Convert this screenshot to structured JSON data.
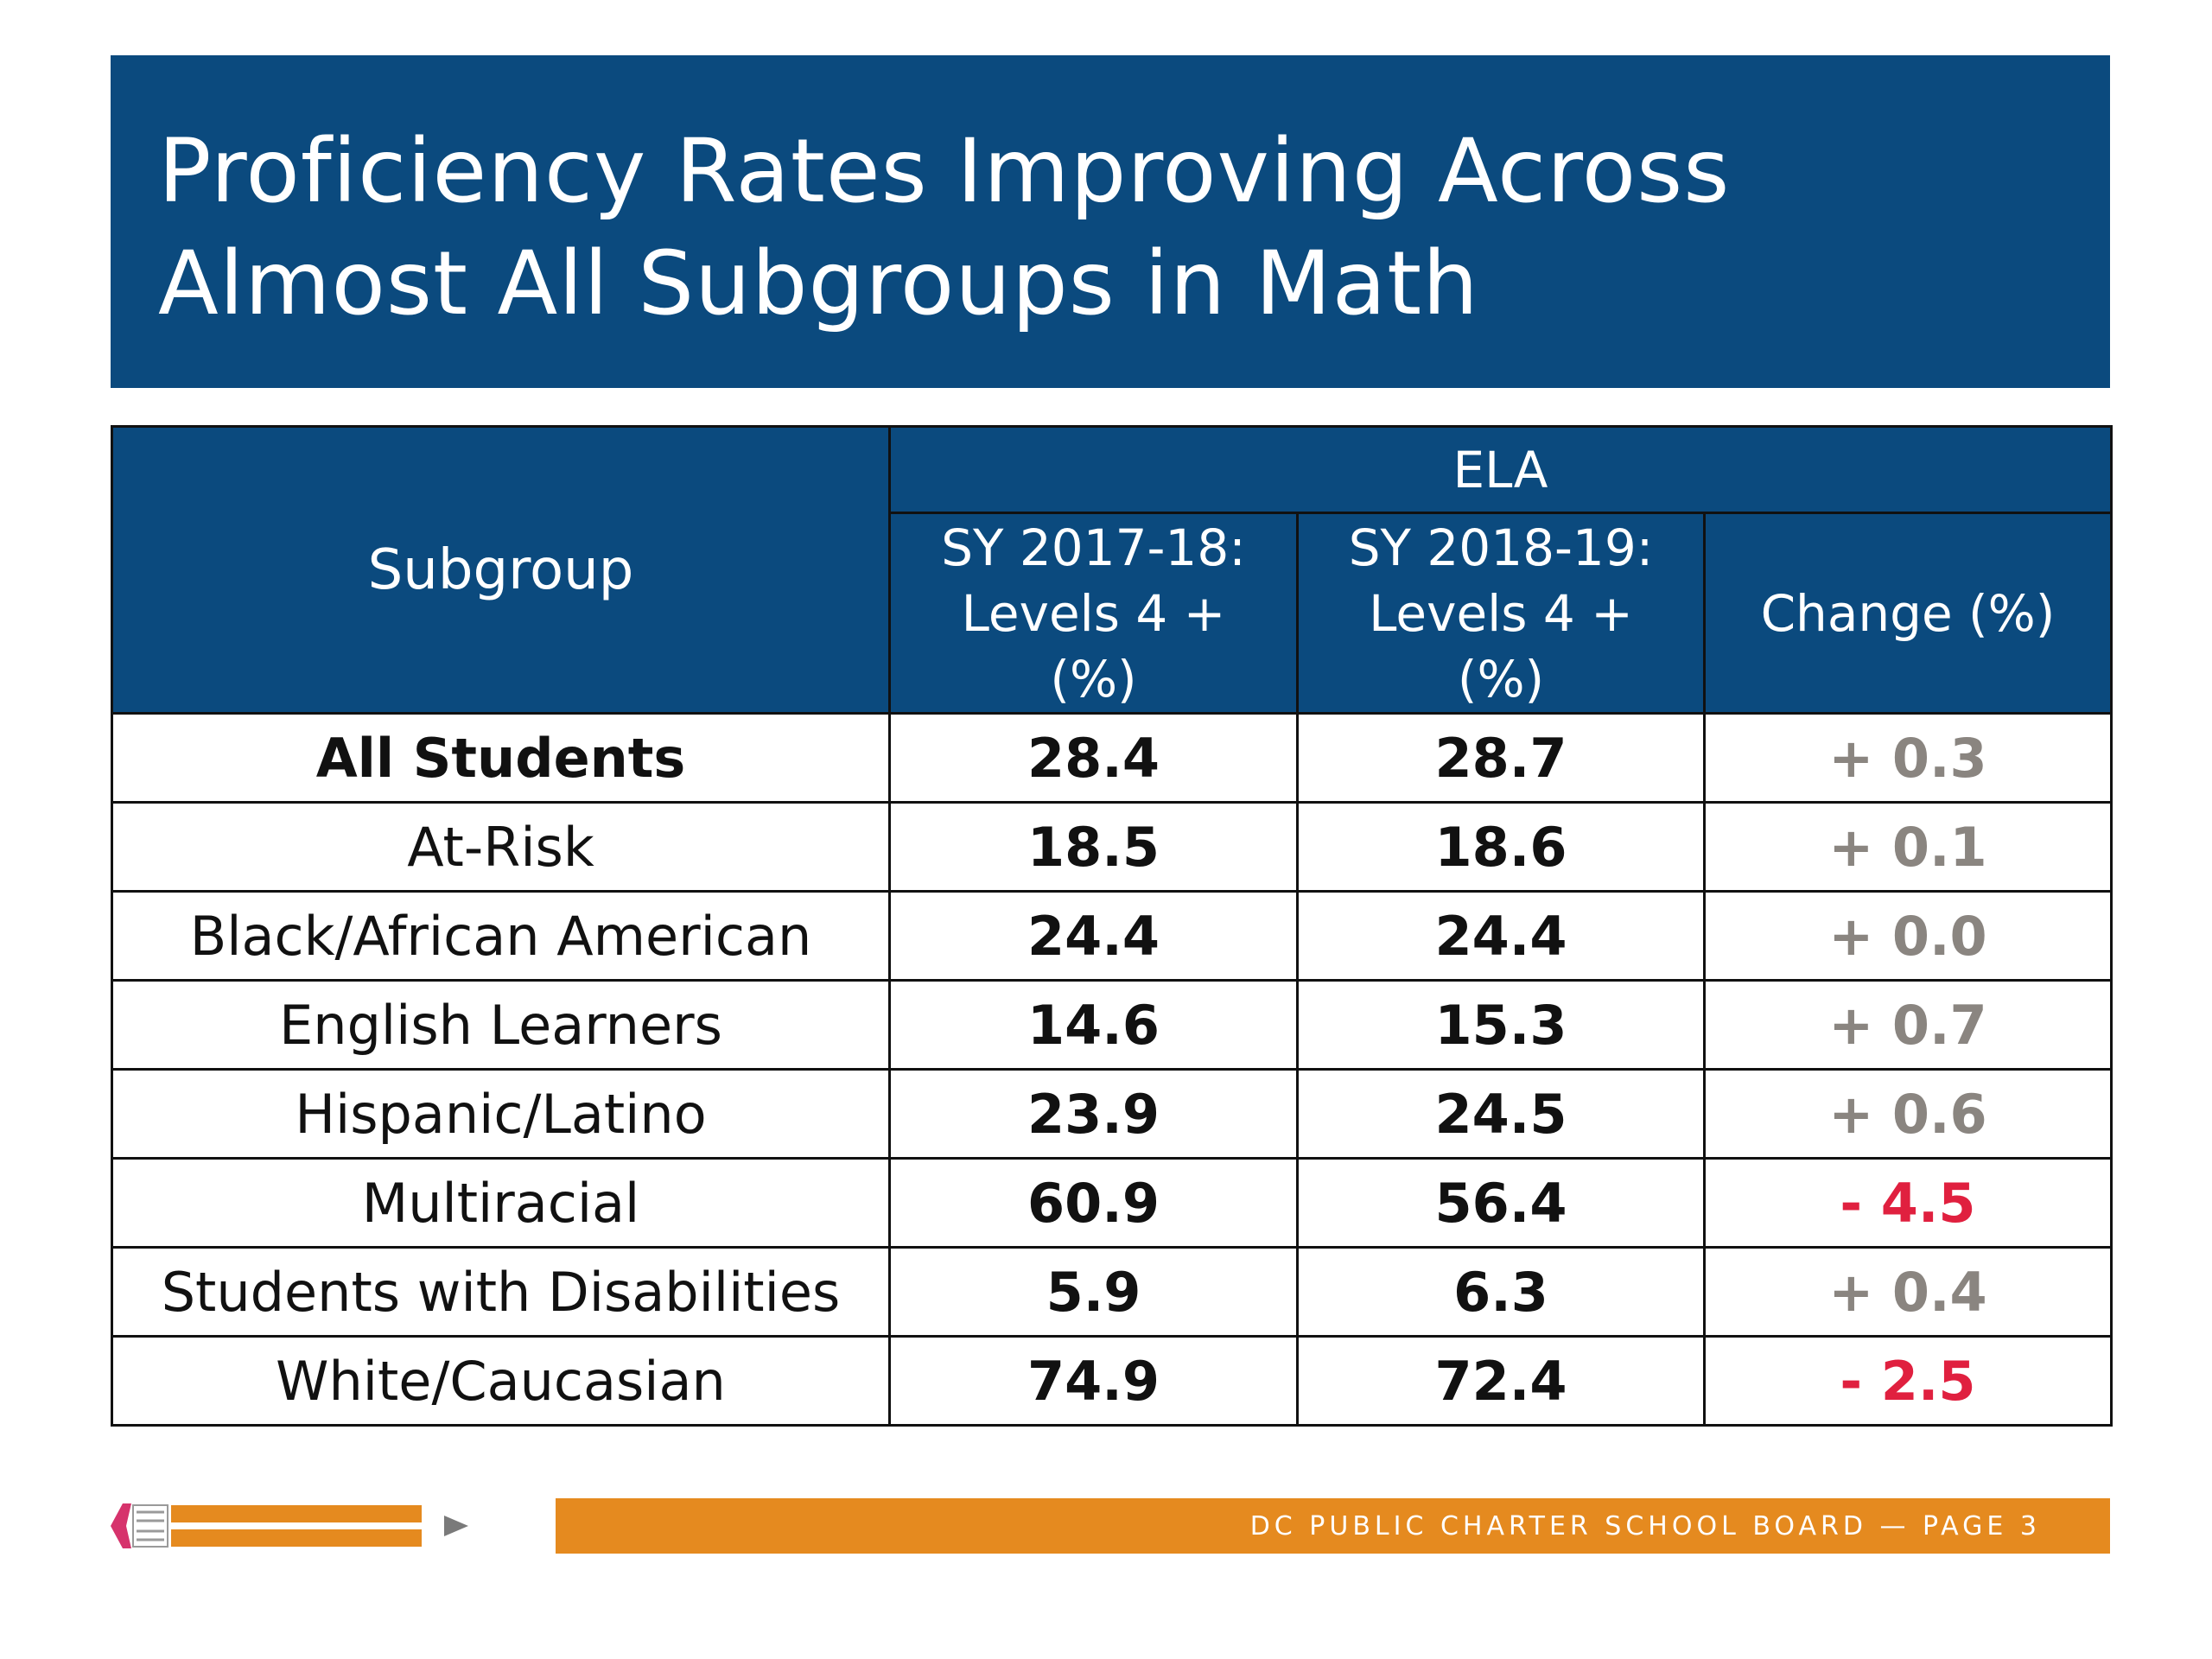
{
  "title": {
    "line1": "Proficiency Rates Improving Across",
    "line2": "Almost All Subgroups in Math"
  },
  "table": {
    "header_subgroup": "Subgroup",
    "header_group": "ELA",
    "columns": [
      {
        "l1": "SY 2017-18:",
        "l2": "Levels 4 +",
        "l3": "(%)"
      },
      {
        "l1": "SY 2018-19:",
        "l2": "Levels 4 +",
        "l3": "(%)"
      },
      {
        "l1": "Change (%)"
      }
    ],
    "rows": [
      {
        "name": "All Students",
        "y1": "28.4",
        "y2": "28.7",
        "change": "+ 0.3"
      },
      {
        "name": "At-Risk",
        "y1": "18.5",
        "y2": "18.6",
        "change": "+ 0.1"
      },
      {
        "name": "Black/African American",
        "y1": "24.4",
        "y2": "24.4",
        "change": "+ 0.0"
      },
      {
        "name": "English Learners",
        "y1": "14.6",
        "y2": "15.3",
        "change": "+ 0.7"
      },
      {
        "name": "Hispanic/Latino",
        "y1": "23.9",
        "y2": "24.5",
        "change": "+ 0.6"
      },
      {
        "name": "Multiracial",
        "y1": "60.9",
        "y2": "56.4",
        "change": "- 4.5"
      },
      {
        "name": "Students with Disabilities",
        "y1": "5.9",
        "y2": "6.3",
        "change": "+ 0.4"
      },
      {
        "name": "White/Caucasian",
        "y1": "74.9",
        "y2": "72.4",
        "change": "- 2.5"
      }
    ]
  },
  "colors": {
    "banner": "#0b4a7e",
    "positive_change": "#8a8580",
    "negative_change": "#e0203f",
    "footer_bar": "#e58a1f"
  },
  "footer": {
    "text": "DC PUBLIC CHARTER SCHOOL BOARD — PAGE 3",
    "pencil_icon": "pencil-icon",
    "arrow_icon": "play-arrow-icon"
  }
}
